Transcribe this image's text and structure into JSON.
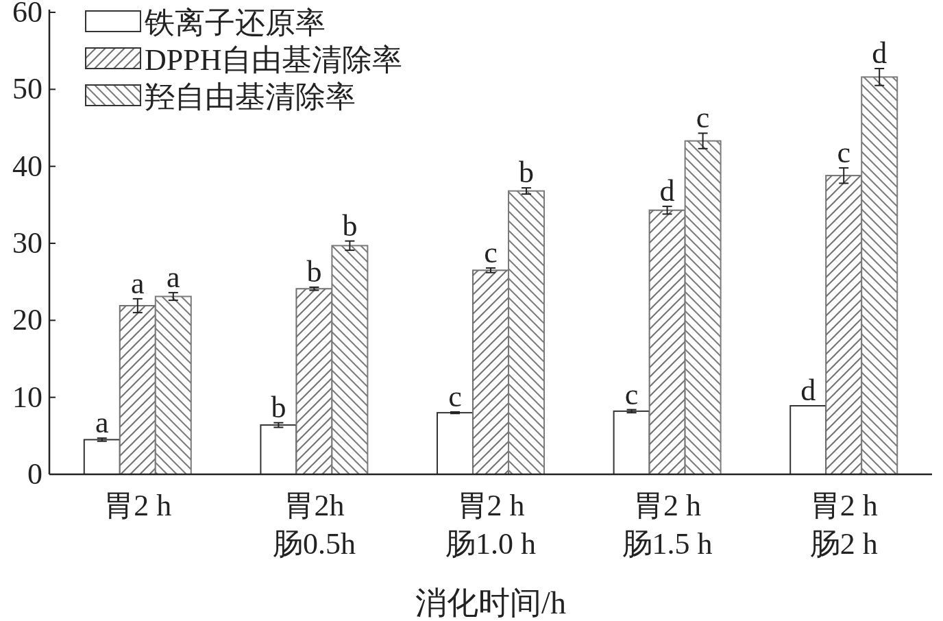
{
  "chart_data": {
    "type": "bar",
    "xlabel": "消化时间/h",
    "categories": [
      "胃2 h",
      "胃2h\n肠0.5h",
      "胃2 h\n肠1.0 h",
      "胃2 h\n肠1.5 h",
      "胃2 h\n肠2 h"
    ],
    "series": [
      {
        "name": "铁离子还原率",
        "color": "#ffffff",
        "values": [
          4.5,
          6.4,
          8.0,
          8.2,
          8.9
        ],
        "errors": [
          0.2,
          0.3,
          0.1,
          0.2,
          null
        ],
        "value_labels": [
          "a",
          "b",
          "c",
          "c",
          "d"
        ]
      },
      {
        "name": "DPPH自由基清除率",
        "color": "#707070",
        "values": [
          21.9,
          24.1,
          26.5,
          34.3,
          38.8
        ],
        "errors": [
          0.9,
          0.2,
          0.3,
          0.5,
          1.0
        ],
        "value_labels": [
          "a",
          "b",
          "c",
          "d",
          "c"
        ]
      },
      {
        "name": "羟自由基清除率",
        "color": "#7a7a7a",
        "values": [
          23.1,
          29.7,
          36.8,
          43.3,
          51.6
        ],
        "errors": [
          0.5,
          0.6,
          0.4,
          1.0,
          1.1
        ],
        "value_labels": [
          "a",
          "b",
          "b",
          "c",
          "d"
        ]
      }
    ],
    "ylim": [
      0,
      60
    ],
    "yticks": [
      0,
      10,
      20,
      30,
      40,
      50,
      60
    ],
    "grid": false,
    "legend": "top left"
  }
}
